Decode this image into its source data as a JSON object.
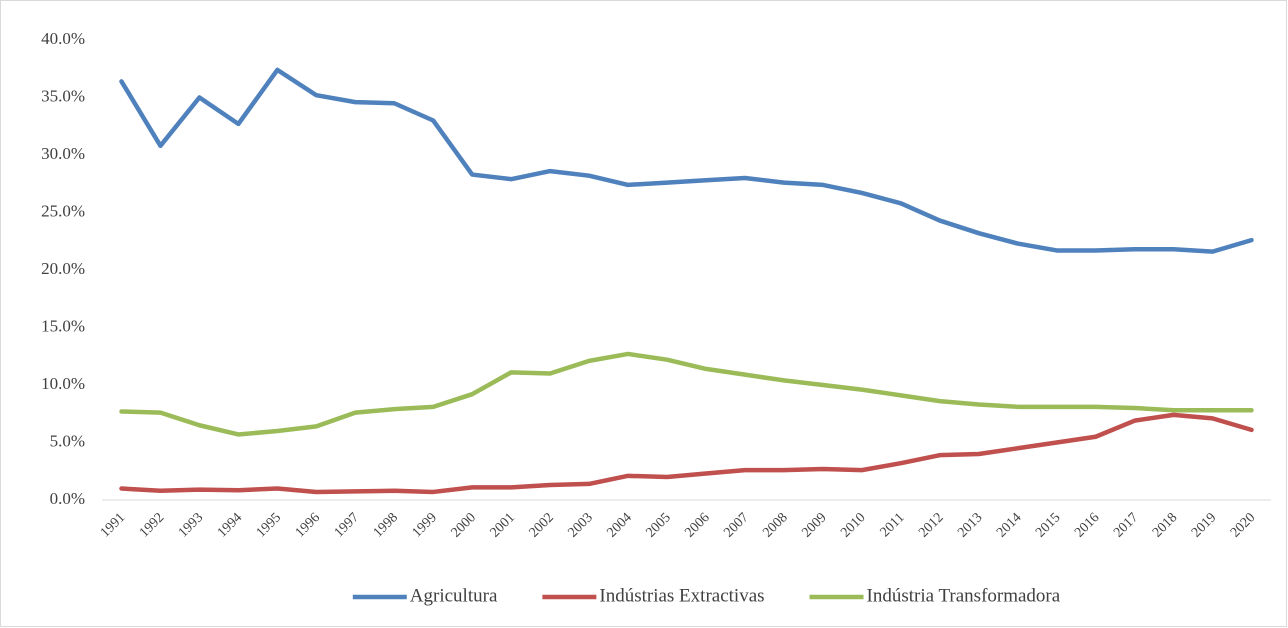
{
  "chart_data": {
    "type": "line",
    "categories": [
      "1991",
      "1992",
      "1993",
      "1994",
      "1995",
      "1996",
      "1997",
      "1998",
      "1999",
      "2000",
      "2001",
      "2002",
      "2003",
      "2004",
      "2005",
      "2006",
      "2007",
      "2008",
      "2009",
      "2010",
      "2011",
      "2012",
      "2013",
      "2014",
      "2015",
      "2016",
      "2017",
      "2018",
      "2019",
      "2020"
    ],
    "series": [
      {
        "name": "Agricultura",
        "color": "#4f81bd",
        "values": [
          36.4,
          30.8,
          35.0,
          32.7,
          37.4,
          35.2,
          34.6,
          34.5,
          33.0,
          28.3,
          27.9,
          28.6,
          28.2,
          27.4,
          27.6,
          27.8,
          28.0,
          27.6,
          27.4,
          26.7,
          25.8,
          24.3,
          23.2,
          22.3,
          21.7,
          21.7,
          21.8,
          21.8,
          21.6,
          22.6
        ]
      },
      {
        "name": "Indústrias Extractivas",
        "color": "#c0504d",
        "values": [
          1.0,
          0.8,
          0.9,
          0.85,
          1.0,
          0.7,
          0.75,
          0.8,
          0.7,
          1.1,
          1.1,
          1.3,
          1.4,
          2.1,
          2.0,
          2.3,
          2.6,
          2.6,
          2.7,
          2.6,
          3.2,
          3.9,
          4.0,
          4.5,
          5.0,
          5.5,
          6.9,
          7.4,
          7.1,
          6.1
        ]
      },
      {
        "name": "Indústria Transformadora",
        "color": "#9bbb59",
        "values": [
          7.7,
          7.6,
          6.5,
          5.7,
          6.0,
          6.4,
          7.6,
          7.9,
          8.1,
          9.2,
          11.1,
          11.0,
          12.1,
          12.7,
          12.2,
          11.4,
          10.9,
          10.4,
          10.0,
          9.6,
          9.1,
          8.6,
          8.3,
          8.1,
          8.1,
          8.1,
          8.0,
          7.8,
          7.8,
          7.8
        ]
      }
    ],
    "ylim": [
      0,
      40
    ],
    "yticks": [
      {
        "value": 0,
        "label": "0.0%"
      },
      {
        "value": 5,
        "label": "5.0%"
      },
      {
        "value": 10,
        "label": "10.0%"
      },
      {
        "value": 15,
        "label": "15.0%"
      },
      {
        "value": 20,
        "label": "20.0%"
      },
      {
        "value": 25,
        "label": "25.0%"
      },
      {
        "value": 30,
        "label": "30.0%"
      },
      {
        "value": 35,
        "label": "35.0%"
      },
      {
        "value": 40,
        "label": "40.0%"
      }
    ],
    "grid": false,
    "legend": "bottom"
  }
}
